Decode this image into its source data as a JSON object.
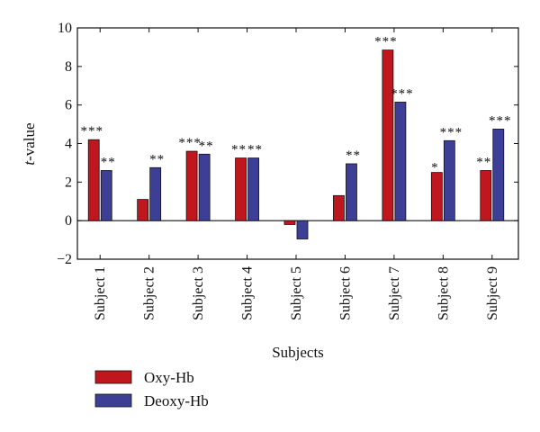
{
  "chart_data": {
    "type": "bar",
    "xlabel": "Subjects",
    "ylabel_italic": "t",
    "ylabel_rest": "-value",
    "ylim": [
      -2,
      10
    ],
    "yticks": [
      "−2",
      "0",
      "2",
      "4",
      "6",
      "8",
      "10"
    ],
    "ytick_values": [
      -2,
      0,
      2,
      4,
      6,
      8,
      10
    ],
    "categories": [
      "Subject 1",
      "Subject 2",
      "Subject 3",
      "Subject 4",
      "Subject 5",
      "Subject 6",
      "Subject 7",
      "Subject 8",
      "Subject 9"
    ],
    "legend_position": "bottom-left",
    "grid": false,
    "series": [
      {
        "name": "Oxy-Hb",
        "color": "#c0171e",
        "values": [
          4.2,
          1.1,
          3.6,
          3.25,
          -0.2,
          1.3,
          8.85,
          2.5,
          2.6
        ],
        "significance": [
          "***",
          "",
          "***",
          "**",
          "",
          "",
          "***",
          "*",
          "**"
        ]
      },
      {
        "name": "Deoxy-Hb",
        "color": "#3d3f96",
        "values": [
          2.6,
          2.75,
          3.45,
          3.25,
          -0.95,
          2.95,
          6.15,
          4.15,
          4.75
        ],
        "significance": [
          "**",
          "**",
          "**",
          "**",
          "",
          "**",
          "***",
          "***",
          "***"
        ]
      }
    ]
  }
}
